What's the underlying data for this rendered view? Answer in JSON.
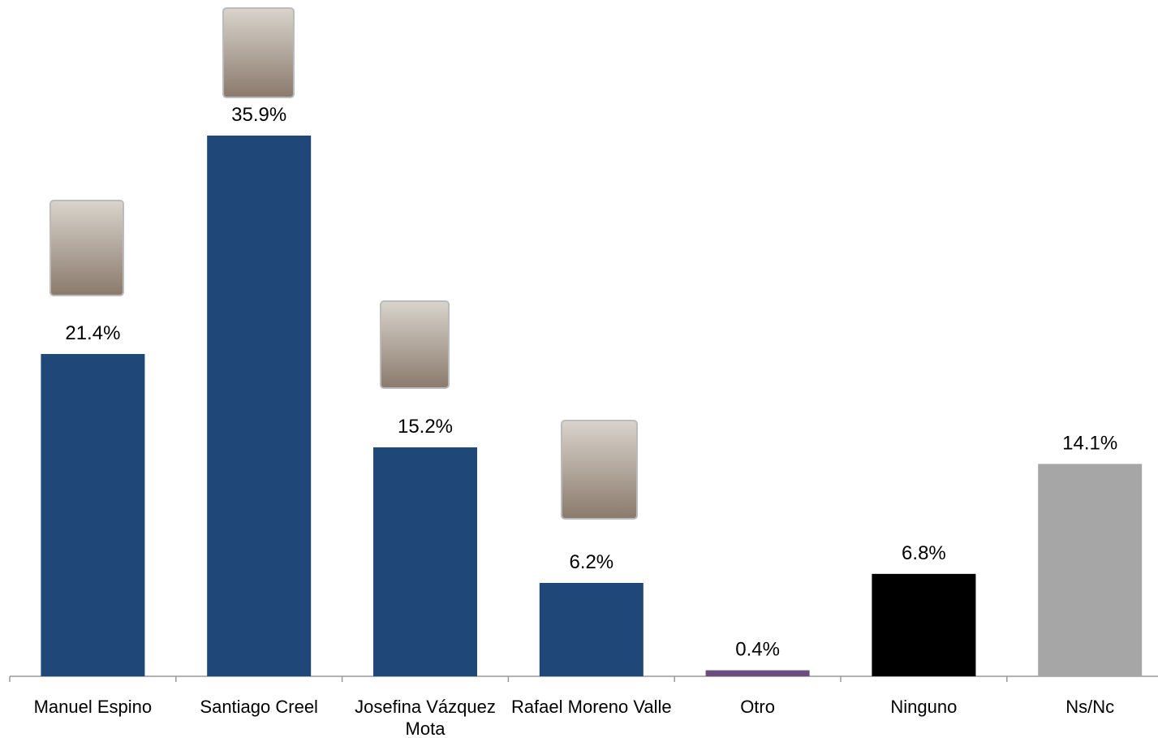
{
  "chart_data": {
    "type": "bar",
    "categories": [
      "Manuel Espino",
      "Santiago Creel",
      "Josefina Vázquez Mota",
      "Rafael Moreno Valle",
      "Otro",
      "Ninguno",
      "Ns/Nc"
    ],
    "values": [
      21.4,
      35.9,
      15.2,
      6.2,
      0.4,
      6.8,
      14.1
    ],
    "value_labels": [
      "21.4%",
      "35.9%",
      "15.2%",
      "6.2%",
      "0.4%",
      "6.8%",
      "14.1%"
    ],
    "colors": [
      "#1f4878",
      "#1f4878",
      "#1f4878",
      "#1f4878",
      "#6b4c7e",
      "#000000",
      "#a6a6a6"
    ]
  }
}
